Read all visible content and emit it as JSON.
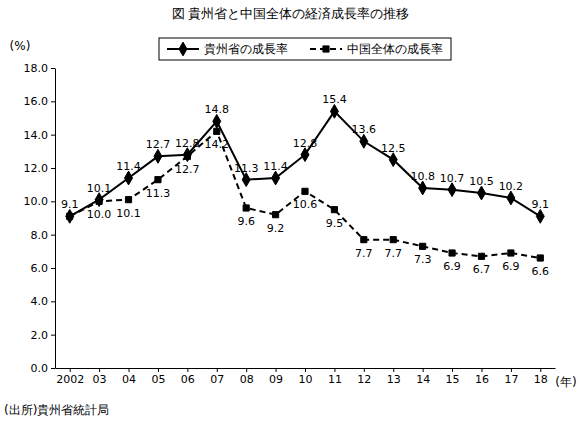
{
  "chart_data": {
    "type": "line",
    "title": "図 貴州省と中国全体の経済成長率の推移",
    "y_label": "(%)",
    "x_label": "(年)",
    "source": "(出所)貴州省統計局",
    "categories": [
      "2002",
      "03",
      "04",
      "05",
      "06",
      "07",
      "08",
      "09",
      "10",
      "11",
      "12",
      "13",
      "14",
      "15",
      "16",
      "17",
      "18"
    ],
    "series": [
      {
        "name": "貴州省の成長率",
        "color": "#000000",
        "marker": "diamond",
        "line_style": "solid",
        "values": [
          9.1,
          10.1,
          11.4,
          12.7,
          12.8,
          14.8,
          11.3,
          11.4,
          12.8,
          15.4,
          13.6,
          12.5,
          10.8,
          10.7,
          10.5,
          10.2,
          9.1
        ]
      },
      {
        "name": "中国全体の成長率",
        "color": "#000000",
        "marker": "square",
        "line_style": "dashed",
        "values": [
          9.1,
          10.0,
          10.1,
          11.3,
          12.7,
          14.2,
          9.6,
          9.2,
          10.6,
          9.5,
          7.7,
          7.7,
          7.3,
          6.9,
          6.7,
          6.9,
          6.6
        ],
        "value_labels": [
          null,
          "10.0",
          "10.1",
          "11.3",
          "12.7",
          "14.2",
          "9.6",
          "9.2",
          "10.6",
          "9.5",
          "7.7",
          "7.7",
          "7.3",
          "6.9",
          "6.7",
          "6.9",
          "6.6"
        ]
      }
    ],
    "ylim": [
      0,
      18
    ],
    "yticks": [
      {
        "value": 0,
        "label": "0.0"
      },
      {
        "value": 2,
        "label": "2.0"
      },
      {
        "value": 4,
        "label": "4.0"
      },
      {
        "value": 6,
        "label": "6.0"
      },
      {
        "value": 8,
        "label": "8.0"
      },
      {
        "value": 10,
        "label": "10.0"
      },
      {
        "value": 12,
        "label": "12.0"
      },
      {
        "value": 14,
        "label": "14.0"
      },
      {
        "value": 16,
        "label": "16.0"
      },
      {
        "value": 18,
        "label": "18.0"
      }
    ],
    "grid": false,
    "legend": "top",
    "data_labels": true
  }
}
